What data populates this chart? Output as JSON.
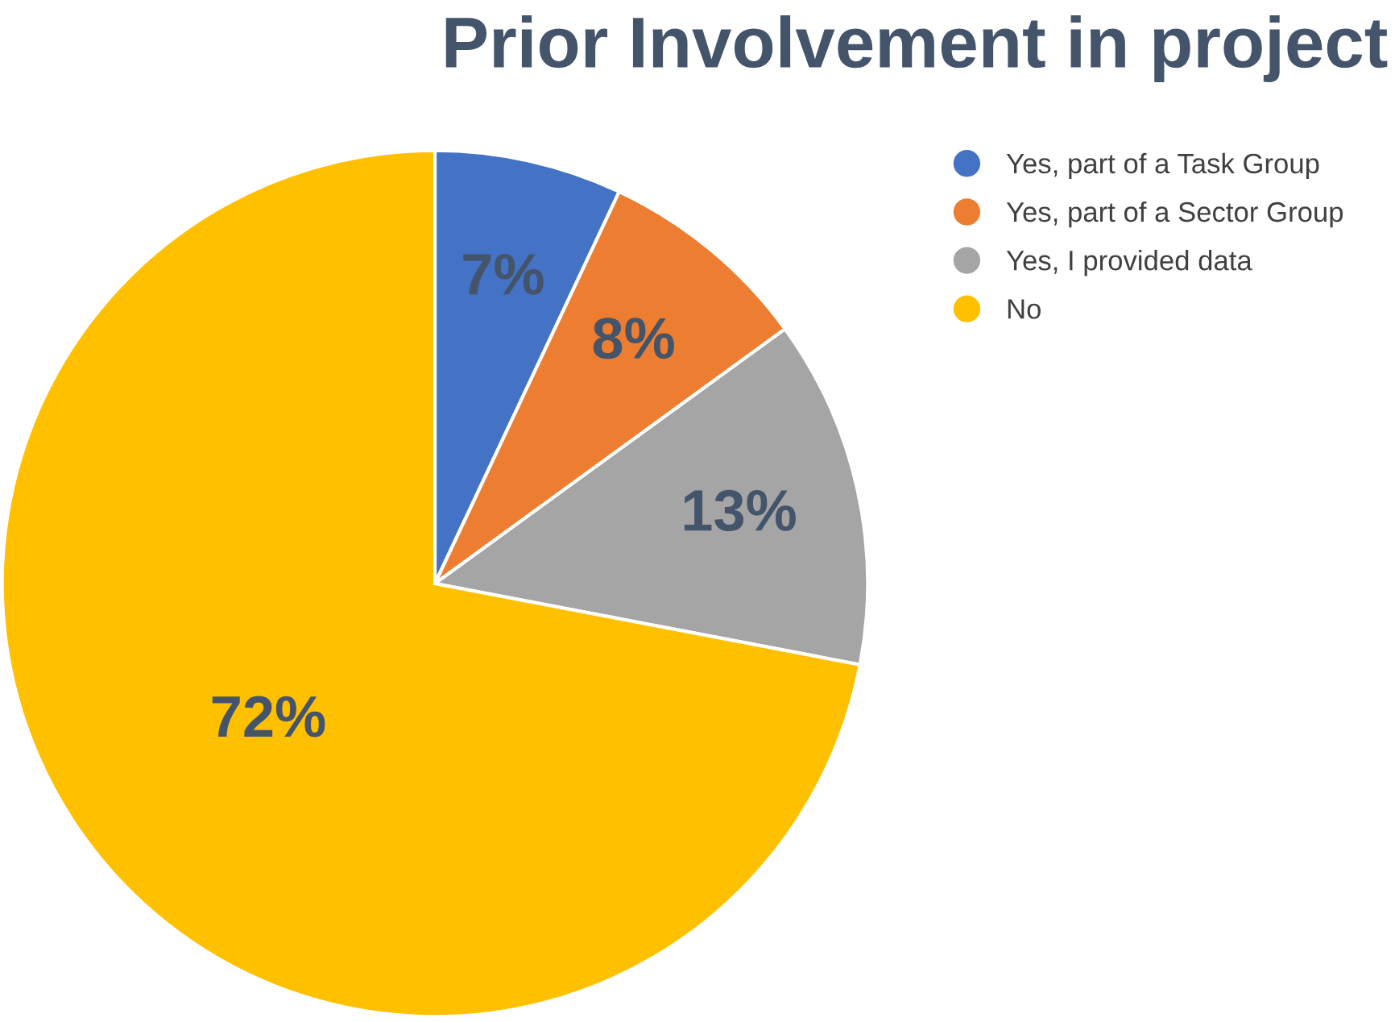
{
  "chart_data": {
    "type": "pie",
    "title": "Prior Involvement in project",
    "categories": [
      "Yes, part of a Task Group",
      "Yes, part of a Sector Group",
      "Yes, I provided data",
      "No"
    ],
    "values": [
      7,
      8,
      13,
      72
    ],
    "colors": [
      "#4472c4",
      "#ed7d31",
      "#a5a5a5",
      "#ffc000"
    ],
    "value_labels": [
      "7%",
      "8%",
      "13%",
      "72%"
    ],
    "legend": "right"
  }
}
